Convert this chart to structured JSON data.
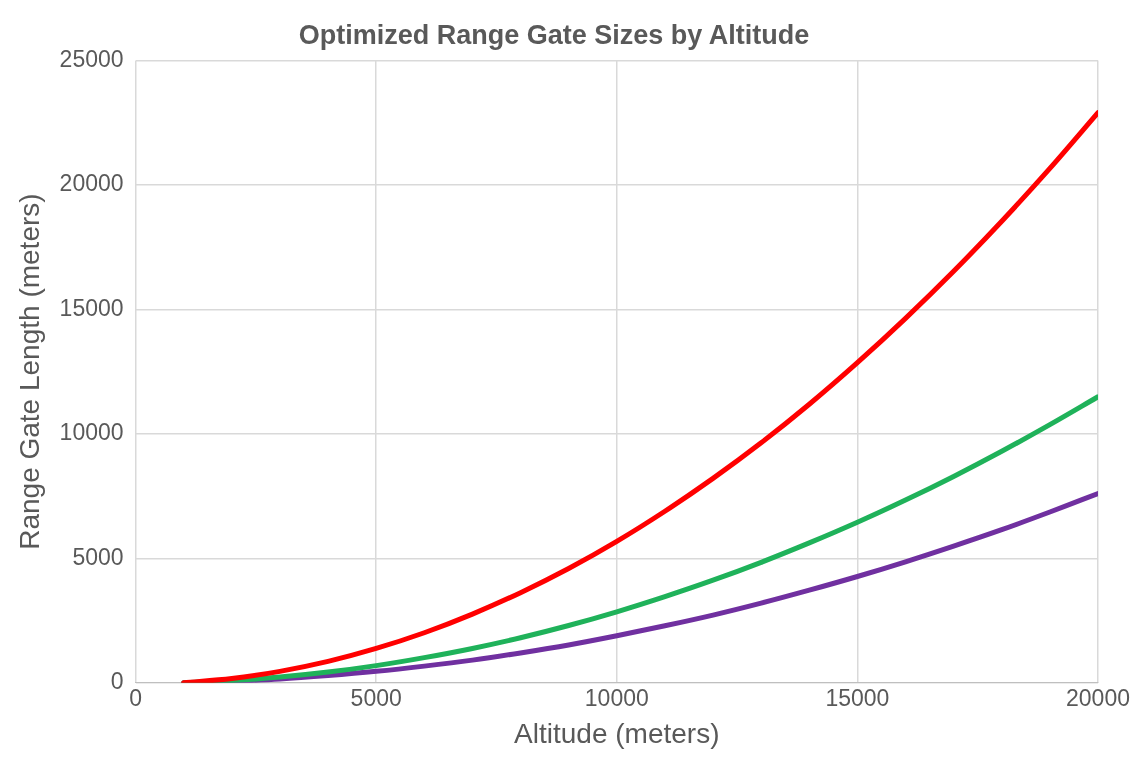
{
  "chart_data": {
    "type": "line",
    "title": "Optimized Range Gate Sizes by Altitude",
    "xlabel": "Altitude (meters)",
    "ylabel": "Range Gate Length (meters)",
    "x": [
      1000,
      2000,
      3000,
      4000,
      5000,
      6000,
      7000,
      8000,
      9000,
      10000,
      11000,
      12000,
      13000,
      14000,
      15000,
      16000,
      17000,
      18000,
      19000,
      20000
    ],
    "series": [
      {
        "color": "#ff0000",
        "values": [
          0,
          170,
          460,
          860,
          1380,
          2010,
          2760,
          3620,
          4590,
          5680,
          6890,
          8210,
          9640,
          11190,
          12860,
          14640,
          16530,
          18540,
          20660,
          22900
        ]
      },
      {
        "color": "#1fb25a",
        "values": [
          0,
          90,
          230,
          430,
          690,
          1010,
          1380,
          1810,
          2300,
          2850,
          3460,
          4120,
          4840,
          5620,
          6450,
          7340,
          8290,
          9300,
          10370,
          11490
        ]
      },
      {
        "color": "#7030a0",
        "values": [
          0,
          60,
          150,
          290,
          460,
          670,
          910,
          1200,
          1520,
          1890,
          2290,
          2720,
          3200,
          3720,
          4270,
          4860,
          5490,
          6150,
          6860,
          7600
        ]
      }
    ],
    "xlim": [
      0,
      20000
    ],
    "xticks": [
      0,
      5000,
      10000,
      15000,
      20000
    ],
    "ylim": [
      0,
      25000
    ],
    "yticks": [
      0,
      5000,
      10000,
      15000,
      20000,
      25000
    ],
    "grid": true,
    "legend": false,
    "marker": "none",
    "line_style": "solid"
  }
}
